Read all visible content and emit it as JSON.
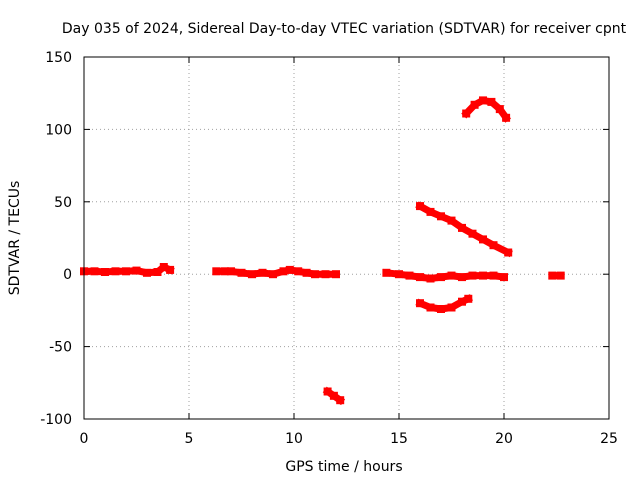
{
  "chart_data": {
    "type": "scatter",
    "title": "Day 035 of 2024, Sidereal Day-to-day VTEC variation (SDTVAR) for receiver cpnt",
    "xlabel": "GPS time / hours",
    "ylabel": "SDTVAR / TECUs",
    "xlim": [
      0,
      25
    ],
    "ylim": [
      -100,
      150
    ],
    "xticks": [
      0,
      5,
      10,
      15,
      20,
      25
    ],
    "yticks": [
      -100,
      -50,
      0,
      50,
      100,
      150
    ],
    "grid": true,
    "color": "#ff0000",
    "series": [
      {
        "x": [
          0.0,
          0.5,
          1.0,
          1.5,
          2.0,
          2.5,
          3.0,
          3.5,
          3.8,
          4.1
        ],
        "y": [
          2,
          2,
          1.5,
          2,
          2,
          2.5,
          1,
          1.5,
          5,
          3
        ]
      },
      {
        "x": [
          6.3,
          6.7
        ],
        "y": [
          2,
          2
        ]
      },
      {
        "x": [
          7.0,
          7.5,
          8.0,
          8.5,
          9.0,
          9.5,
          9.8,
          10.2,
          10.6,
          11.0,
          11.5,
          12.0
        ],
        "y": [
          2,
          1,
          0,
          1,
          0,
          2,
          3,
          2,
          1,
          0,
          0,
          0
        ]
      },
      {
        "x": [
          11.6,
          11.9,
          12.2
        ],
        "y": [
          -81,
          -84,
          -87
        ]
      },
      {
        "x": [
          14.4,
          15.0,
          15.5,
          16.0,
          16.5,
          17.0,
          17.5,
          18.0,
          18.5,
          19.0,
          19.5,
          20.0
        ],
        "y": [
          1,
          0,
          -1,
          -2,
          -3,
          -2,
          -1,
          -2,
          -1,
          -1,
          -1,
          -2
        ]
      },
      {
        "x": [
          16.0,
          16.5,
          17.0,
          17.5,
          18.0,
          18.5,
          19.0,
          19.5,
          20.2
        ],
        "y": [
          47,
          43,
          40,
          37,
          32,
          28,
          24,
          20,
          15
        ]
      },
      {
        "x": [
          16.0,
          16.5,
          17.0,
          17.5,
          18.0,
          18.3
        ],
        "y": [
          -20,
          -23,
          -24,
          -23,
          -19,
          -17
        ]
      },
      {
        "x": [
          18.2,
          18.6,
          19.0,
          19.4,
          19.8,
          20.1
        ],
        "y": [
          111,
          117,
          120,
          119,
          114,
          108
        ]
      },
      {
        "x": [
          22.3,
          22.7
        ],
        "y": [
          -1,
          -1
        ]
      }
    ]
  }
}
